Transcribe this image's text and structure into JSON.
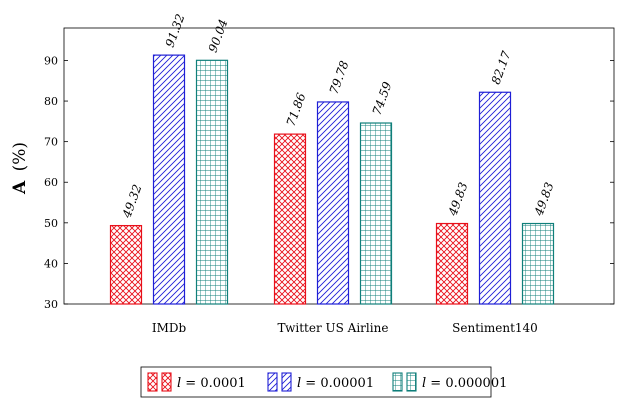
{
  "chart_data": {
    "type": "bar",
    "categories": [
      "IMDb",
      "Twitter US Airline",
      "Sentiment140"
    ],
    "series": [
      {
        "name": "l = 0.0001",
        "values": [
          49.32,
          71.86,
          49.83
        ],
        "color": "#e8101a",
        "pattern": "crosshatch"
      },
      {
        "name": "l = 0.00001",
        "values": [
          91.32,
          79.78,
          82.17
        ],
        "color": "#1f1fd6",
        "pattern": "diagonal"
      },
      {
        "name": "l = 0.000001",
        "values": [
          90.04,
          74.59,
          49.83
        ],
        "color": "#0f7f7a",
        "pattern": "grid"
      }
    ],
    "data_labels": [
      [
        "49.32",
        "71.86",
        "49.83"
      ],
      [
        "91.32",
        "79.78",
        "82.17"
      ],
      [
        "90.04",
        "74.59",
        "49.83"
      ]
    ],
    "ylabel_bold": "A",
    "ylabel_unit": "(%)",
    "xlabel": "",
    "ylim": [
      30,
      98
    ],
    "yticks": [
      30,
      40,
      50,
      60,
      70,
      80,
      90
    ],
    "grid": false,
    "legend_position": "bottom",
    "legend": [
      {
        "var": "l",
        "eq": " = 0.0001"
      },
      {
        "var": "l",
        "eq": " = 0.00001"
      },
      {
        "var": "l",
        "eq": " = 0.000001"
      }
    ]
  }
}
